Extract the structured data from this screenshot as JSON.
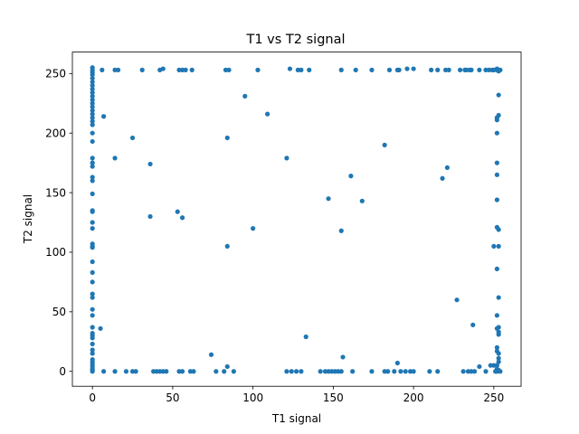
{
  "chart_data": {
    "type": "scatter",
    "title": "T1 vs T2 signal",
    "xlabel": "T1 signal",
    "ylabel": "T2 signal",
    "xlim": [
      -12.5,
      267
    ],
    "ylim": [
      -12.5,
      268
    ],
    "xticks": [
      0,
      50,
      100,
      150,
      200,
      250
    ],
    "yticks": [
      0,
      50,
      100,
      150,
      200,
      250
    ],
    "grid": false,
    "point_color": "#1f77b4",
    "points": [
      [
        0,
        255
      ],
      [
        0,
        253
      ],
      [
        0,
        251
      ],
      [
        0,
        249
      ],
      [
        0,
        246
      ],
      [
        0,
        243
      ],
      [
        0,
        240
      ],
      [
        0,
        237
      ],
      [
        0,
        234
      ],
      [
        0,
        231
      ],
      [
        0,
        228
      ],
      [
        0,
        225
      ],
      [
        0,
        222
      ],
      [
        0,
        219
      ],
      [
        0,
        216
      ],
      [
        0,
        213
      ],
      [
        0,
        210
      ],
      [
        0,
        207
      ],
      [
        0,
        200
      ],
      [
        0,
        193
      ],
      [
        0,
        179
      ],
      [
        0,
        175
      ],
      [
        0,
        172
      ],
      [
        0,
        163
      ],
      [
        0,
        160
      ],
      [
        0,
        149
      ],
      [
        0,
        135
      ],
      [
        0,
        134
      ],
      [
        0,
        125
      ],
      [
        0,
        120
      ],
      [
        0,
        107
      ],
      [
        0,
        105
      ],
      [
        0,
        104
      ],
      [
        0,
        92
      ],
      [
        0,
        83
      ],
      [
        0,
        75
      ],
      [
        0,
        65
      ],
      [
        0,
        62
      ],
      [
        0,
        52
      ],
      [
        0,
        47
      ],
      [
        0,
        37
      ],
      [
        0,
        32
      ],
      [
        0,
        30
      ],
      [
        0,
        28
      ],
      [
        0,
        23
      ],
      [
        0,
        18
      ],
      [
        0,
        15
      ],
      [
        0,
        10
      ],
      [
        0,
        8
      ],
      [
        0,
        6
      ],
      [
        0,
        4
      ],
      [
        0,
        2
      ],
      [
        0,
        1
      ],
      [
        0,
        0
      ],
      [
        6,
        253
      ],
      [
        14,
        253
      ],
      [
        16,
        253
      ],
      [
        31,
        253
      ],
      [
        42,
        253
      ],
      [
        44,
        254
      ],
      [
        54,
        253
      ],
      [
        56,
        253
      ],
      [
        58,
        253
      ],
      [
        62,
        253
      ],
      [
        83,
        253
      ],
      [
        85,
        253
      ],
      [
        103,
        253
      ],
      [
        123,
        254
      ],
      [
        128,
        253
      ],
      [
        130,
        253
      ],
      [
        135,
        253
      ],
      [
        155,
        253
      ],
      [
        164,
        253
      ],
      [
        174,
        253
      ],
      [
        185,
        253
      ],
      [
        190,
        253
      ],
      [
        191,
        253
      ],
      [
        196,
        254
      ],
      [
        200,
        254
      ],
      [
        211,
        253
      ],
      [
        215,
        253
      ],
      [
        220,
        253
      ],
      [
        222,
        253
      ],
      [
        229,
        253
      ],
      [
        232,
        253
      ],
      [
        233,
        253
      ],
      [
        235,
        253
      ],
      [
        236,
        253
      ],
      [
        241,
        253
      ],
      [
        245,
        253
      ],
      [
        247,
        253
      ],
      [
        249,
        253
      ],
      [
        250,
        253
      ],
      [
        252,
        254
      ],
      [
        252,
        253
      ],
      [
        253,
        252
      ],
      [
        254,
        253
      ],
      [
        7,
        214
      ],
      [
        25,
        196
      ],
      [
        14,
        179
      ],
      [
        36,
        174
      ],
      [
        36,
        130
      ],
      [
        53,
        134
      ],
      [
        56,
        129
      ],
      [
        84,
        196
      ],
      [
        84,
        105
      ],
      [
        95,
        231
      ],
      [
        100,
        120
      ],
      [
        109,
        216
      ],
      [
        121,
        179
      ],
      [
        147,
        145
      ],
      [
        155,
        118
      ],
      [
        161,
        164
      ],
      [
        168,
        143
      ],
      [
        182,
        190
      ],
      [
        218,
        162
      ],
      [
        221,
        171
      ],
      [
        227,
        60
      ],
      [
        237,
        39
      ],
      [
        250,
        105
      ],
      [
        253,
        232
      ],
      [
        253,
        215
      ],
      [
        252,
        213
      ],
      [
        252,
        211
      ],
      [
        252,
        200
      ],
      [
        252,
        175
      ],
      [
        252,
        165
      ],
      [
        252,
        144
      ],
      [
        252,
        121
      ],
      [
        253,
        119
      ],
      [
        253,
        105
      ],
      [
        252,
        86
      ],
      [
        253,
        62
      ],
      [
        252,
        47
      ],
      [
        253,
        37
      ],
      [
        252,
        36
      ],
      [
        253,
        33
      ],
      [
        253,
        31
      ],
      [
        252,
        20
      ],
      [
        252,
        17
      ],
      [
        253,
        15
      ],
      [
        253,
        11
      ],
      [
        253,
        8
      ],
      [
        252,
        5
      ],
      [
        250,
        5
      ],
      [
        252,
        2
      ],
      [
        253,
        1
      ],
      [
        254,
        0
      ],
      [
        252,
        0
      ],
      [
        5,
        36
      ],
      [
        7,
        0
      ],
      [
        14,
        0
      ],
      [
        21,
        0
      ],
      [
        25,
        0
      ],
      [
        27,
        0
      ],
      [
        38,
        0
      ],
      [
        40,
        0
      ],
      [
        42,
        0
      ],
      [
        44,
        0
      ],
      [
        46,
        0
      ],
      [
        54,
        0
      ],
      [
        56,
        0
      ],
      [
        61,
        0
      ],
      [
        63,
        0
      ],
      [
        74,
        14
      ],
      [
        77,
        0
      ],
      [
        82,
        0
      ],
      [
        84,
        4
      ],
      [
        88,
        0
      ],
      [
        121,
        0
      ],
      [
        124,
        0
      ],
      [
        127,
        0
      ],
      [
        130,
        0
      ],
      [
        133,
        29
      ],
      [
        142,
        0
      ],
      [
        145,
        0
      ],
      [
        147,
        0
      ],
      [
        149,
        0
      ],
      [
        151,
        0
      ],
      [
        153,
        0
      ],
      [
        155,
        0
      ],
      [
        156,
        12
      ],
      [
        162,
        0
      ],
      [
        174,
        0
      ],
      [
        182,
        0
      ],
      [
        184,
        0
      ],
      [
        188,
        0
      ],
      [
        190,
        7
      ],
      [
        192,
        0
      ],
      [
        195,
        0
      ],
      [
        198,
        0
      ],
      [
        200,
        0
      ],
      [
        210,
        0
      ],
      [
        215,
        0
      ],
      [
        231,
        0
      ],
      [
        234,
        0
      ],
      [
        236,
        0
      ],
      [
        238,
        0
      ],
      [
        241,
        4
      ],
      [
        245,
        0
      ],
      [
        248,
        5
      ],
      [
        251,
        0
      ]
    ]
  }
}
